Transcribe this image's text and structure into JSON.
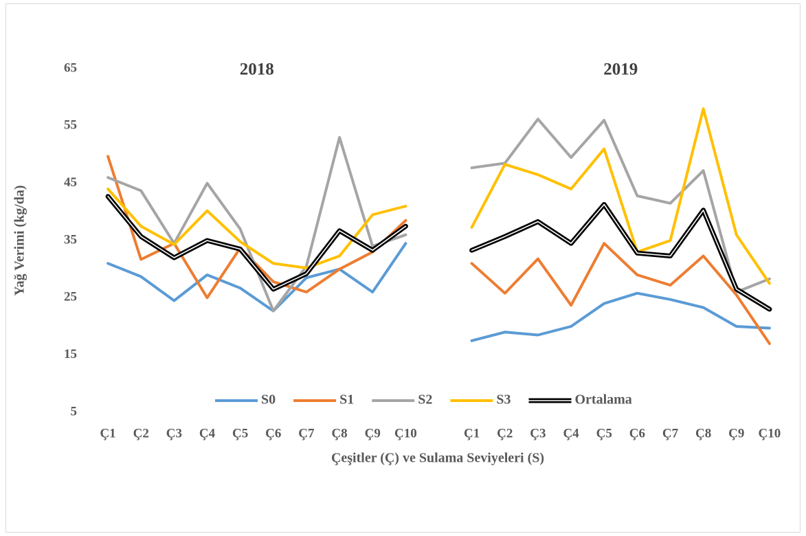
{
  "chart_data": {
    "type": "line",
    "annotations": [
      "2018",
      "2019"
    ],
    "x_label": "Çeşitler (Ç) ve Sulama Seviyeleri (S)",
    "y_label": "Yağ Verimi (kg/da)",
    "categories": [
      "Ç1",
      "Ç2",
      "Ç3",
      "Ç4",
      "Ç5",
      "Ç6",
      "Ç7",
      "Ç8",
      "Ç9",
      "Ç10",
      null,
      "Ç1",
      "Ç2",
      "Ç3",
      "Ç4",
      "Ç5",
      "Ç6",
      "Ç7",
      "Ç8",
      "Ç9",
      "Ç10"
    ],
    "ylim": [
      5,
      65
    ],
    "yticks": [
      5,
      15,
      25,
      35,
      45,
      55,
      65
    ],
    "grid": false,
    "legend": "bottom",
    "series": [
      {
        "name": "S0",
        "color": "#5b9bd5",
        "values": [
          31,
          28.7,
          24.5,
          29,
          26.7,
          22.7,
          28.5,
          30,
          26,
          34.5,
          null,
          17.5,
          19,
          18.5,
          20,
          24,
          25.8,
          24.7,
          23.3,
          20,
          19.7
        ]
      },
      {
        "name": "S1",
        "color": "#ed7d31",
        "values": [
          49.7,
          31.7,
          34.5,
          25,
          33.7,
          27.8,
          26,
          30,
          33,
          38.5,
          null,
          31,
          25.8,
          31.8,
          23.7,
          34.5,
          29,
          27.2,
          32.3,
          25.5,
          17
        ]
      },
      {
        "name": "S2",
        "color": "#a5a5a5",
        "values": [
          46,
          43.7,
          34.5,
          45,
          37,
          22.7,
          30.5,
          53,
          34,
          36,
          null,
          47.7,
          48.5,
          56.2,
          49.5,
          56,
          42.8,
          41.5,
          47.2,
          26,
          28.3
        ]
      },
      {
        "name": "S3",
        "color": "#ffc000",
        "values": [
          44,
          37.5,
          34.3,
          40.2,
          34.8,
          31,
          30.2,
          32.3,
          39.5,
          41,
          null,
          37.3,
          48.3,
          46.5,
          44,
          51,
          33,
          35,
          58,
          36,
          27.5
        ]
      },
      {
        "name": "Ortalama",
        "color": "#000000",
        "double_line": true,
        "values": [
          42.7,
          35.7,
          32,
          35,
          33.5,
          26.5,
          29.2,
          36.7,
          33.3,
          37.5,
          null,
          33.3,
          35.7,
          38.3,
          34.5,
          41.3,
          32.8,
          32.3,
          40.3,
          26.5,
          23
        ]
      }
    ]
  }
}
